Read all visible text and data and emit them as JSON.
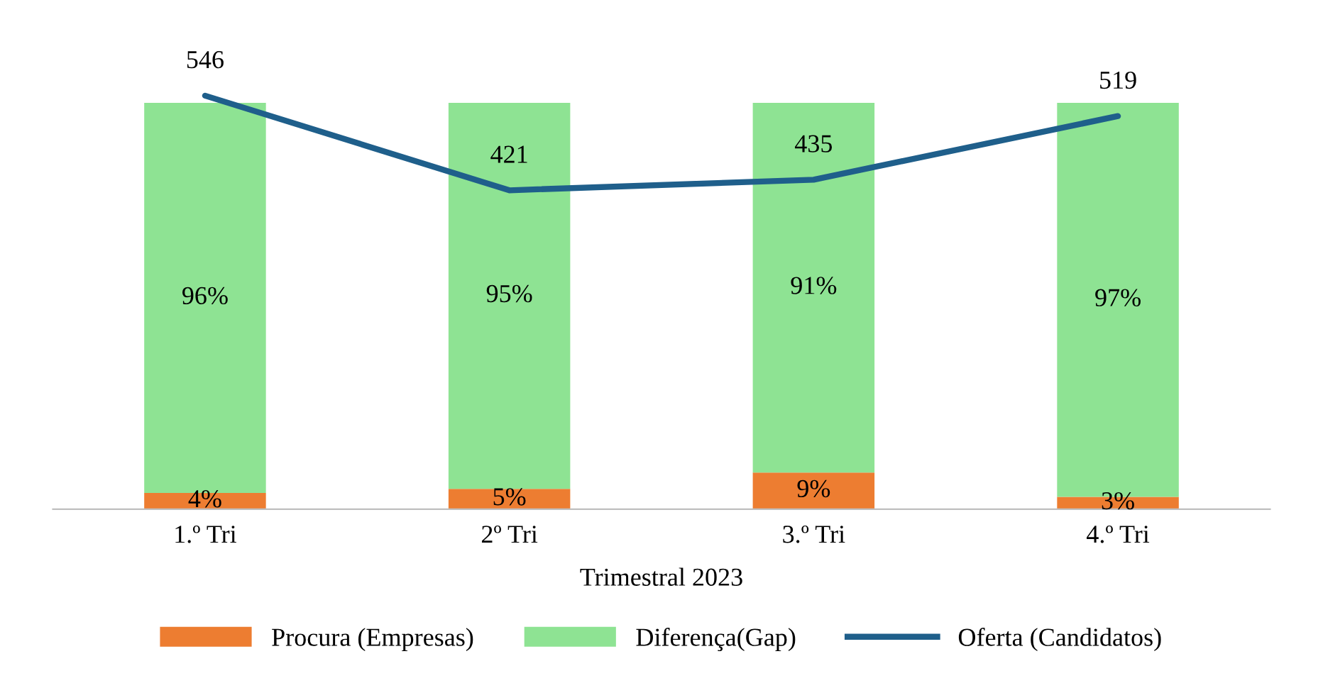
{
  "chart_data": {
    "type": "bar",
    "stacked": true,
    "xlabel": "Trimestral 2023",
    "categories": [
      "1.º Tri",
      "2º Tri",
      "3.º Tri",
      "4.º Tri"
    ],
    "series": [
      {
        "name": "Procura (Empresas)",
        "color": "#ed7d31",
        "values": [
          4,
          5,
          9,
          3
        ],
        "value_labels": [
          "4%",
          "5%",
          "9%",
          "3%"
        ]
      },
      {
        "name": "Diferença(Gap)",
        "color": "#8ee393",
        "values": [
          96,
          95,
          91,
          97
        ],
        "value_labels": [
          "96%",
          "95%",
          "91%",
          "97%"
        ]
      },
      {
        "name": "Oferta (Candidatos)",
        "type": "line",
        "axis": "y2",
        "color": "#1f5f8b",
        "values": [
          546,
          421,
          435,
          519
        ]
      }
    ],
    "tick_labels": "x",
    "data_labels": true,
    "legend": "bottom",
    "grid": false,
    "marker": "none"
  }
}
